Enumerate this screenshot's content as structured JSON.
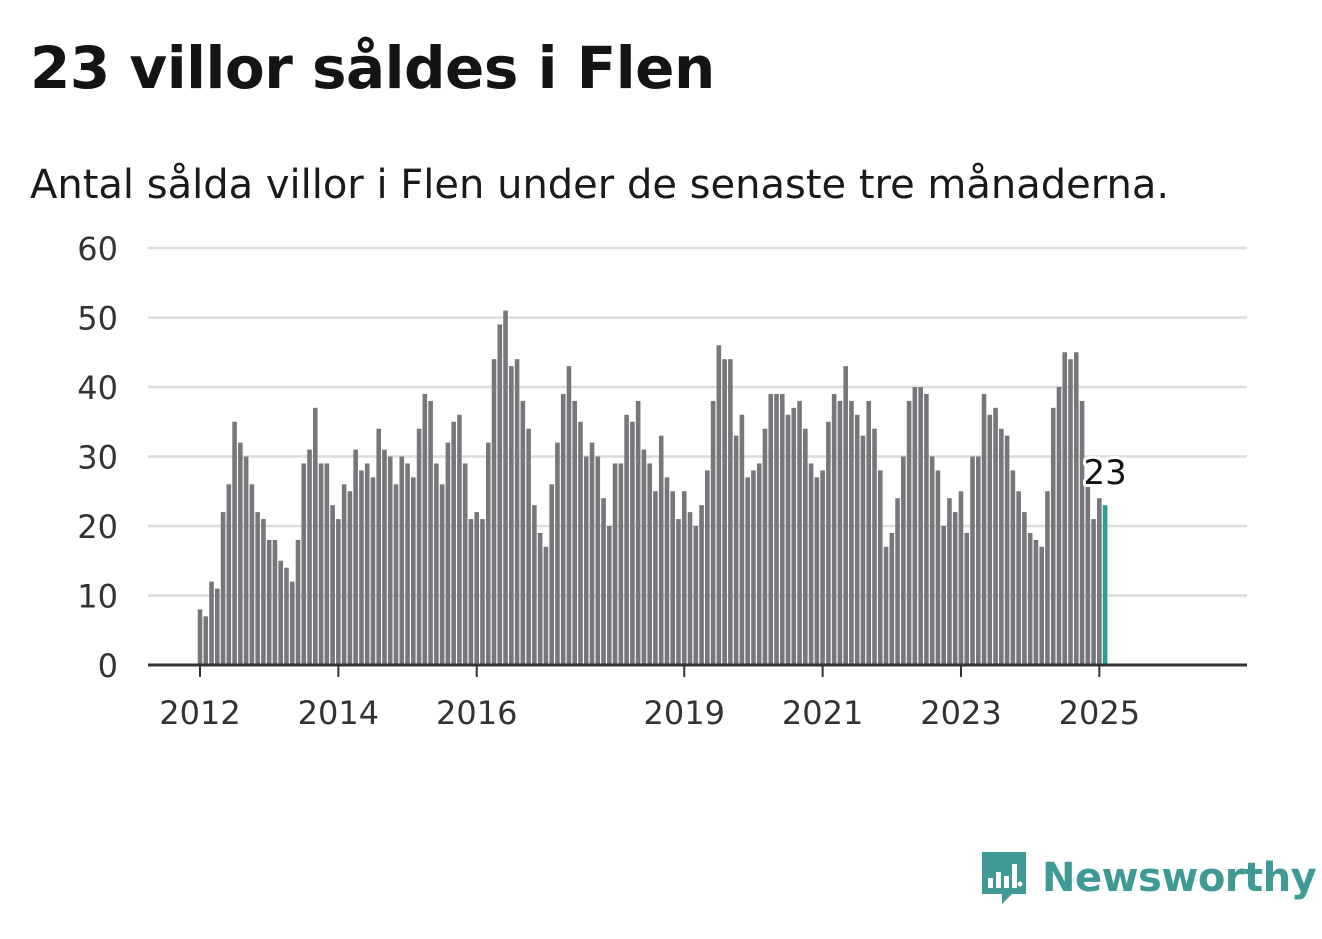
{
  "header": {
    "title": "23 villor såldes i Flen",
    "subtitle": "Antal sålda villor i Flen under de senaste tre månaderna."
  },
  "brand": {
    "name": "Newsworthy",
    "color": "#3f9a96",
    "icon": "newsworthy-logo-icon"
  },
  "chart_data": {
    "type": "bar",
    "title": "23 villor såldes i Flen",
    "subtitle": "Antal sålda villor i Flen under de senaste tre månaderna.",
    "xlabel": "",
    "ylabel": "",
    "ylim": [
      0,
      60
    ],
    "yticks": [
      "0",
      "10",
      "20",
      "30",
      "40",
      "50",
      "60"
    ],
    "xticks": [
      "2012",
      "2014",
      "2016",
      "2019",
      "2021",
      "2023",
      "2025"
    ],
    "grid": true,
    "bar_color": "#77777b",
    "highlight_color": "#2a9d95",
    "start": "2012-01",
    "end": "2025-03",
    "highlight_label": "23",
    "values": [
      8,
      7,
      12,
      11,
      22,
      26,
      35,
      32,
      30,
      26,
      22,
      21,
      18,
      18,
      15,
      14,
      12,
      18,
      29,
      31,
      37,
      29,
      29,
      23,
      21,
      26,
      25,
      31,
      28,
      29,
      27,
      34,
      31,
      30,
      26,
      30,
      29,
      27,
      34,
      39,
      38,
      29,
      26,
      32,
      35,
      36,
      29,
      21,
      22,
      21,
      32,
      44,
      49,
      51,
      43,
      44,
      38,
      34,
      23,
      19,
      17,
      26,
      32,
      39,
      43,
      38,
      35,
      30,
      32,
      30,
      24,
      20,
      29,
      29,
      36,
      35,
      38,
      31,
      29,
      25,
      33,
      27,
      25,
      21,
      25,
      22,
      20,
      23,
      28,
      38,
      46,
      44,
      44,
      33,
      36,
      27,
      28,
      29,
      34,
      39,
      39,
      39,
      36,
      37,
      38,
      34,
      29,
      27,
      28,
      35,
      39,
      38,
      43,
      38,
      36,
      33,
      38,
      34,
      28,
      17,
      19,
      24,
      30,
      38,
      40,
      40,
      39,
      30,
      28,
      20,
      24,
      22,
      25,
      19,
      30,
      30,
      39,
      36,
      37,
      34,
      33,
      28,
      25,
      22,
      19,
      18,
      17,
      25,
      37,
      40,
      45,
      44,
      45,
      38,
      27,
      21,
      24,
      23
    ]
  }
}
